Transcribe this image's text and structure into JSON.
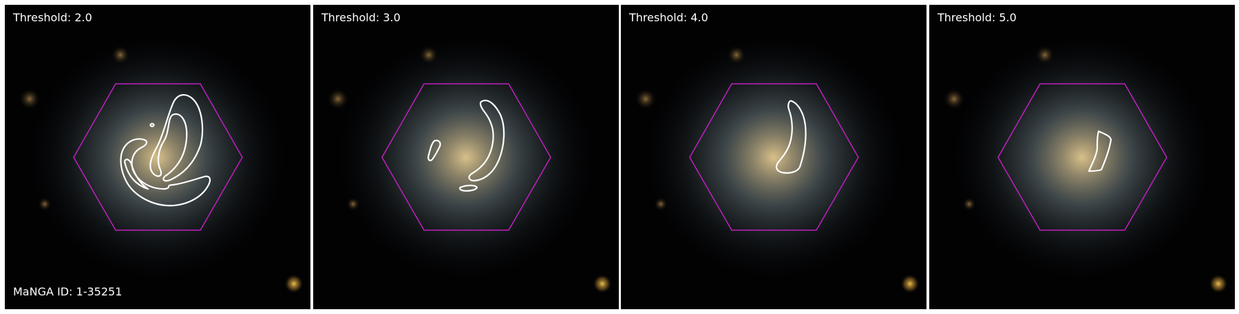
{
  "figure": {
    "panels": [
      {
        "threshold_label": "Threshold: 2.0"
      },
      {
        "threshold_label": "Threshold: 3.0"
      },
      {
        "threshold_label": "Threshold: 4.0"
      },
      {
        "threshold_label": "Threshold: 5.0"
      }
    ],
    "manga_id_label": "MaNGA ID: 1-35251"
  },
  "colors": {
    "background": "#020203",
    "hexagon": "#c020c0",
    "contour": "#ffffff",
    "text": "#ffffff"
  }
}
